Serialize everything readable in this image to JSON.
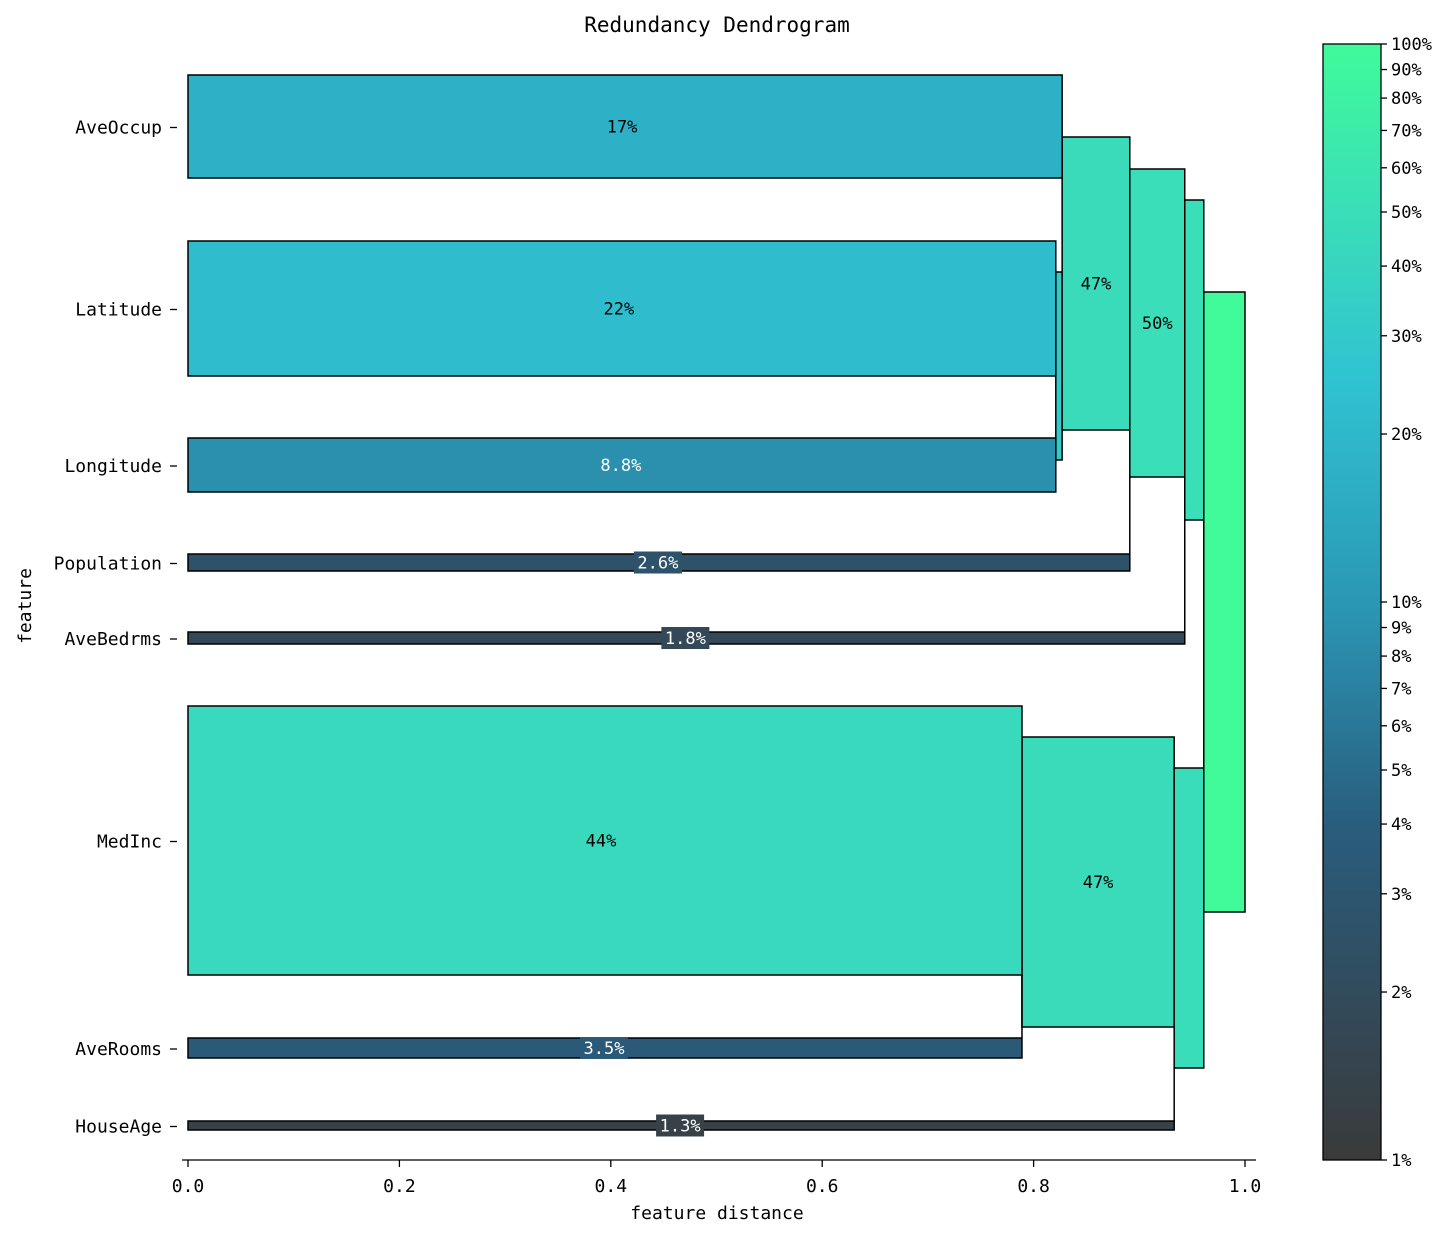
{
  "chart_data": {
    "type": "dendrogram",
    "title": "Redundancy Dendrogram",
    "xlabel": "feature distance",
    "ylabel": "feature",
    "xlim": [
      0.0,
      1.0
    ],
    "x_ticks": [
      "0.0",
      "0.2",
      "0.4",
      "0.6",
      "0.8",
      "1.0"
    ],
    "features": [
      {
        "name": "AveOccup",
        "importance": 0.17,
        "label": "17%",
        "merge_distance": 0.827
      },
      {
        "name": "Latitude",
        "importance": 0.22,
        "label": "22%",
        "merge_distance": 0.821
      },
      {
        "name": "Longitude",
        "importance": 0.088,
        "label": "8.8%",
        "merge_distance": 0.821
      },
      {
        "name": "Population",
        "importance": 0.026,
        "label": "2.6%",
        "merge_distance": 0.891
      },
      {
        "name": "AveBedrms",
        "importance": 0.018,
        "label": "1.8%",
        "merge_distance": 0.943
      },
      {
        "name": "MedInc",
        "importance": 0.44,
        "label": "44%",
        "merge_distance": 0.789
      },
      {
        "name": "AveRooms",
        "importance": 0.035,
        "label": "3.5%",
        "merge_distance": 0.789
      },
      {
        "name": "HouseAge",
        "importance": 0.013,
        "label": "1.3%",
        "merge_distance": 0.933
      }
    ],
    "clusters": [
      {
        "members": [
          "Latitude",
          "Longitude"
        ],
        "importance": 0.31,
        "label": "",
        "distance_from": 0.821,
        "distance_to": 0.827
      },
      {
        "members": [
          "AveOccup",
          "Latitude",
          "Longitude"
        ],
        "importance": 0.47,
        "label": "47%",
        "distance_from": 0.827,
        "distance_to": 0.891
      },
      {
        "members": [
          "AveOccup",
          "Latitude",
          "Longitude",
          "Population"
        ],
        "importance": 0.5,
        "label": "50%",
        "distance_from": 0.891,
        "distance_to": 0.943
      },
      {
        "members": [
          "AveOccup",
          "Latitude",
          "Longitude",
          "Population",
          "AveBedrms"
        ],
        "importance": 0.51,
        "label": "",
        "distance_from": 0.943,
        "distance_to": 0.961
      },
      {
        "members": [
          "MedInc",
          "AveRooms"
        ],
        "importance": 0.47,
        "label": "47%",
        "distance_from": 0.789,
        "distance_to": 0.933
      },
      {
        "members": [
          "MedInc",
          "AveRooms",
          "HouseAge"
        ],
        "importance": 0.49,
        "label": "",
        "distance_from": 0.933,
        "distance_to": 0.961
      },
      {
        "members": [
          "all"
        ],
        "importance": 1.0,
        "label": "",
        "distance_from": 0.961,
        "distance_to": 1.0
      }
    ],
    "colorbar": {
      "scale": "log",
      "range": [
        0.01,
        1.0
      ],
      "ticks": [
        {
          "value": 1.0,
          "label": "100%"
        },
        {
          "value": 0.9,
          "label": "90%"
        },
        {
          "value": 0.8,
          "label": "80%"
        },
        {
          "value": 0.7,
          "label": "70%"
        },
        {
          "value": 0.6,
          "label": "60%"
        },
        {
          "value": 0.5,
          "label": "50%"
        },
        {
          "value": 0.4,
          "label": "40%"
        },
        {
          "value": 0.3,
          "label": "30%"
        },
        {
          "value": 0.2,
          "label": "20%"
        },
        {
          "value": 0.1,
          "label": "10%"
        },
        {
          "value": 0.09,
          "label": "9%"
        },
        {
          "value": 0.08,
          "label": "8%"
        },
        {
          "value": 0.07,
          "label": "7%"
        },
        {
          "value": 0.06,
          "label": "6%"
        },
        {
          "value": 0.05,
          "label": "5%"
        },
        {
          "value": 0.04,
          "label": "4%"
        },
        {
          "value": 0.03,
          "label": "3%"
        },
        {
          "value": 0.02,
          "label": "2%"
        },
        {
          "value": 0.01,
          "label": "1%"
        }
      ],
      "colors": [
        "#3a3a3a",
        "#295d7e",
        "#2a98b5",
        "#30c3d2",
        "#3adeb8",
        "#3ffb9a"
      ]
    }
  }
}
